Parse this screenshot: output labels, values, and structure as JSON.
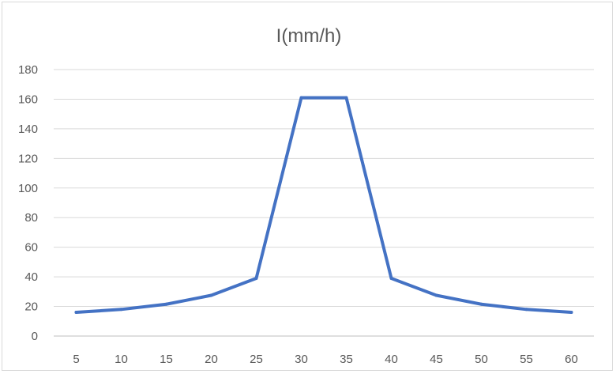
{
  "chart_data": {
    "type": "line",
    "title": "I(mm/h)",
    "xlabel": "",
    "ylabel": "",
    "categories": [
      "5",
      "10",
      "15",
      "20",
      "25",
      "30",
      "35",
      "40",
      "45",
      "50",
      "55",
      "60"
    ],
    "series": [
      {
        "values": [
          16,
          18,
          21.5,
          27.5,
          39,
          161,
          161,
          39,
          27.5,
          21.5,
          18,
          16
        ]
      }
    ],
    "y_ticks": [
      "0",
      "20",
      "40",
      "60",
      "80",
      "100",
      "120",
      "140",
      "160",
      "180"
    ],
    "ylim": [
      0,
      180
    ],
    "grid": true,
    "legend": "none",
    "line_color": "#4472c4"
  }
}
